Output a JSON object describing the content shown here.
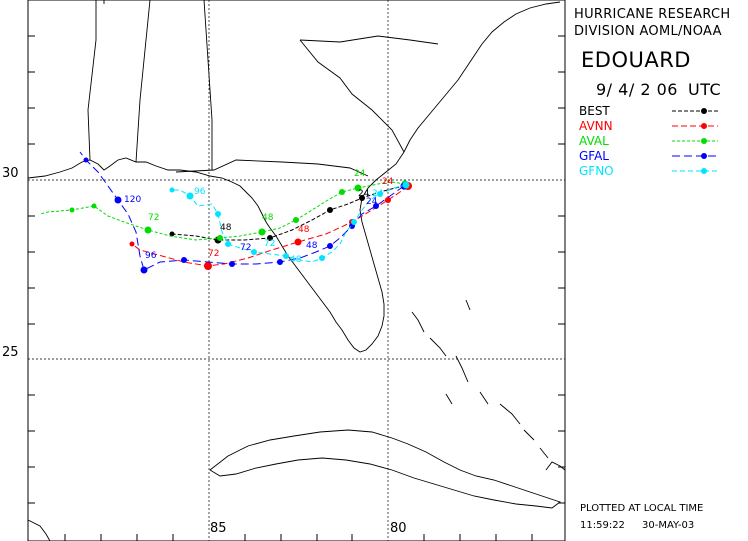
{
  "header": {
    "org_line1": "HURRICANE RESEARCH",
    "org_line2": "DIVISION AOML/NOAA",
    "storm_name": "EDOUARD",
    "date_time": "9/ 4/ 2 06",
    "timezone": "UTC"
  },
  "legend": [
    {
      "label": "BEST",
      "color": "#000000",
      "dash": "4,2"
    },
    {
      "label": "AVNN",
      "color": "#ff0000",
      "dash": "6,3"
    },
    {
      "label": "AVAL",
      "color": "#00dd00",
      "dash": "3,2"
    },
    {
      "label": "GFAL",
      "color": "#0000ff",
      "dash": "8,4"
    },
    {
      "label": "GFNO",
      "color": "#00e5ff",
      "dash": "5,3"
    }
  ],
  "footer": {
    "plotted_note": "PLOTTED AT LOCAL TIME",
    "plot_time": "11:59:22",
    "plot_date": "30-MAY-03"
  },
  "axes": {
    "lat_labels": [
      "30",
      "25"
    ],
    "lon_labels": [
      "85",
      "80"
    ]
  },
  "track_labels": {
    "gfal_120": "120",
    "gfal_96": "96",
    "gfal_72": "72",
    "gfal_48": "48",
    "gfal_24": "24",
    "aval_72": "72",
    "aval_48": "48",
    "aval_24": "24",
    "avnn_72": "72",
    "avnn_48": "48",
    "avnn_24": "24",
    "best_48": "48",
    "best_24": "24",
    "gfno_96": "96",
    "gfno_72": "72",
    "gfno_48": "48",
    "gfno_24": "24"
  }
}
